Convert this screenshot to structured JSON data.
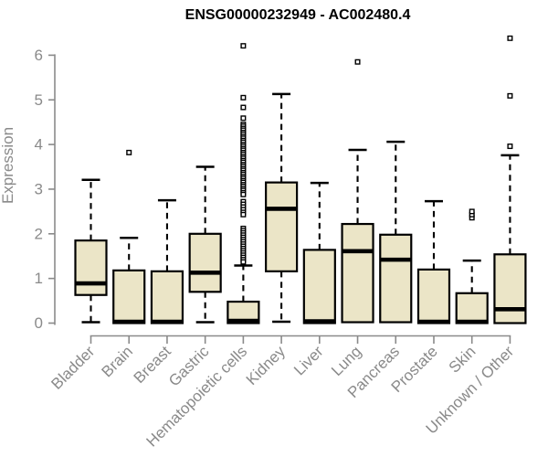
{
  "chart_data": {
    "type": "boxplot",
    "title": "ENSG00000232949 - AC002480.4",
    "xlabel": "",
    "ylabel": "Expression",
    "ylim": [
      0,
      6.5
    ],
    "yticks": [
      0,
      1,
      2,
      3,
      4,
      5,
      6
    ],
    "grid": false,
    "legend": false,
    "categories": [
      "Bladder",
      "Brain",
      "Breast",
      "Gastric",
      "Hematopoietic cells",
      "Kidney",
      "Liver",
      "Lung",
      "Pancreas",
      "Prostate",
      "Skin",
      "Unknown / Other"
    ],
    "series": [
      {
        "category": "Bladder",
        "low": 0.02,
        "q1": 0.63,
        "median": 0.89,
        "q3": 1.85,
        "high": 3.21,
        "outliers": []
      },
      {
        "category": "Brain",
        "low": 0.0,
        "q1": 0.0,
        "median": 0.03,
        "q3": 1.18,
        "high": 1.91,
        "outliers": [
          3.82
        ]
      },
      {
        "category": "Breast",
        "low": 0.0,
        "q1": 0.0,
        "median": 0.03,
        "q3": 1.16,
        "high": 2.75,
        "outliers": []
      },
      {
        "category": "Gastric",
        "low": 0.02,
        "q1": 0.7,
        "median": 1.13,
        "q3": 2.0,
        "high": 3.5,
        "outliers": []
      },
      {
        "category": "Hematopoietic cells",
        "low": 0.0,
        "q1": 0.0,
        "median": 0.05,
        "q3": 0.48,
        "high": 1.29,
        "outliers": [
          6.21,
          5.05,
          4.83,
          4.59,
          4.45,
          4.41,
          4.36,
          4.32,
          4.27,
          4.23,
          4.18,
          4.14,
          4.09,
          4.05,
          4.0,
          3.96,
          3.91,
          3.87,
          3.82,
          3.78,
          3.73,
          3.69,
          3.64,
          3.6,
          3.55,
          3.51,
          3.46,
          3.42,
          3.37,
          3.33,
          3.28,
          3.24,
          3.19,
          3.15,
          3.1,
          3.06,
          3.01,
          2.97,
          2.92,
          2.88,
          2.72,
          2.66,
          2.6,
          2.54,
          2.48,
          2.43,
          2.12,
          2.07,
          2.02,
          1.97,
          1.92,
          1.87,
          1.82,
          1.77,
          1.72,
          1.67,
          1.62,
          1.57,
          1.52,
          1.47,
          1.42,
          1.37
        ]
      },
      {
        "category": "Kidney",
        "low": 0.03,
        "q1": 1.16,
        "median": 2.56,
        "q3": 3.15,
        "high": 5.13,
        "outliers": []
      },
      {
        "category": "Liver",
        "low": 0.0,
        "q1": 0.0,
        "median": 0.04,
        "q3": 1.64,
        "high": 3.14,
        "outliers": []
      },
      {
        "category": "Lung",
        "low": 0.02,
        "q1": 0.02,
        "median": 1.61,
        "q3": 2.22,
        "high": 3.88,
        "outliers": [
          5.85
        ]
      },
      {
        "category": "Pancreas",
        "low": 0.02,
        "q1": 0.02,
        "median": 1.42,
        "q3": 1.98,
        "high": 4.06,
        "outliers": []
      },
      {
        "category": "Prostate",
        "low": 0.0,
        "q1": 0.0,
        "median": 0.03,
        "q3": 1.2,
        "high": 2.73,
        "outliers": []
      },
      {
        "category": "Skin",
        "low": 0.0,
        "q1": 0.0,
        "median": 0.03,
        "q3": 0.67,
        "high": 1.4,
        "outliers": [
          2.36,
          2.43,
          2.5
        ]
      },
      {
        "category": "Unknown / Other",
        "low": 0.0,
        "q1": 0.0,
        "median": 0.31,
        "q3": 1.54,
        "high": 3.76,
        "outliers": [
          3.96,
          5.09,
          6.38
        ]
      }
    ],
    "colors": {
      "box_fill": "#EBE5C7",
      "box_stroke": "#000000",
      "median": "#000000",
      "whisker": "#000000",
      "outlier_stroke": "#000000",
      "outlier_fill": "#FFFFFF",
      "axis": "#8a8a8a",
      "tick_label": "#8a8a8a",
      "title": "#000000",
      "background": "#FFFFFF"
    }
  }
}
